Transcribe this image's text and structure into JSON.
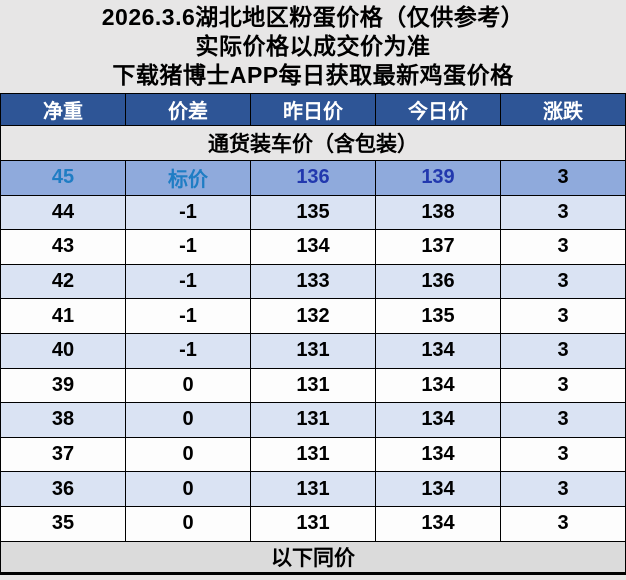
{
  "header": {
    "line1": "2026.3.6湖北地区粉蛋价格（仅供参考）",
    "line2": "实际价格以成交价为准",
    "line3": "下载猪博士APP每日获取最新鸡蛋价格"
  },
  "table": {
    "columns": [
      "净重",
      "价差",
      "昨日价",
      "今日价",
      "涨跌"
    ],
    "section_title": "通货装车价（含包装）",
    "rows": [
      {
        "cells": [
          "45",
          "标价",
          "136",
          "139",
          "3"
        ],
        "highlight": true
      },
      {
        "cells": [
          "44",
          "-1",
          "135",
          "138",
          "3"
        ],
        "highlight": false
      },
      {
        "cells": [
          "43",
          "-1",
          "134",
          "137",
          "3"
        ],
        "highlight": false
      },
      {
        "cells": [
          "42",
          "-1",
          "133",
          "136",
          "3"
        ],
        "highlight": false
      },
      {
        "cells": [
          "41",
          "-1",
          "132",
          "135",
          "3"
        ],
        "highlight": false
      },
      {
        "cells": [
          "40",
          "-1",
          "131",
          "134",
          "3"
        ],
        "highlight": false
      },
      {
        "cells": [
          "39",
          "0",
          "131",
          "134",
          "3"
        ],
        "highlight": false
      },
      {
        "cells": [
          "38",
          "0",
          "131",
          "134",
          "3"
        ],
        "highlight": false
      },
      {
        "cells": [
          "37",
          "0",
          "131",
          "134",
          "3"
        ],
        "highlight": false
      },
      {
        "cells": [
          "36",
          "0",
          "131",
          "134",
          "3"
        ],
        "highlight": false
      },
      {
        "cells": [
          "35",
          "0",
          "131",
          "134",
          "3"
        ],
        "highlight": false
      }
    ],
    "footer": "以下同价"
  },
  "colors": {
    "page_background": "#e7e6e6",
    "header_row_background": "#2e5596",
    "header_row_text": "#ffffff",
    "highlight_row_background": "#8faadc",
    "highlight_label_text": "#1f7dc4",
    "highlight_price_text": "#2238ae",
    "stripe_row_background": "#dae3f3",
    "plain_row_background": "#fdfdfd",
    "footer_row_background": "#dbdbdb",
    "border": "#000000"
  }
}
